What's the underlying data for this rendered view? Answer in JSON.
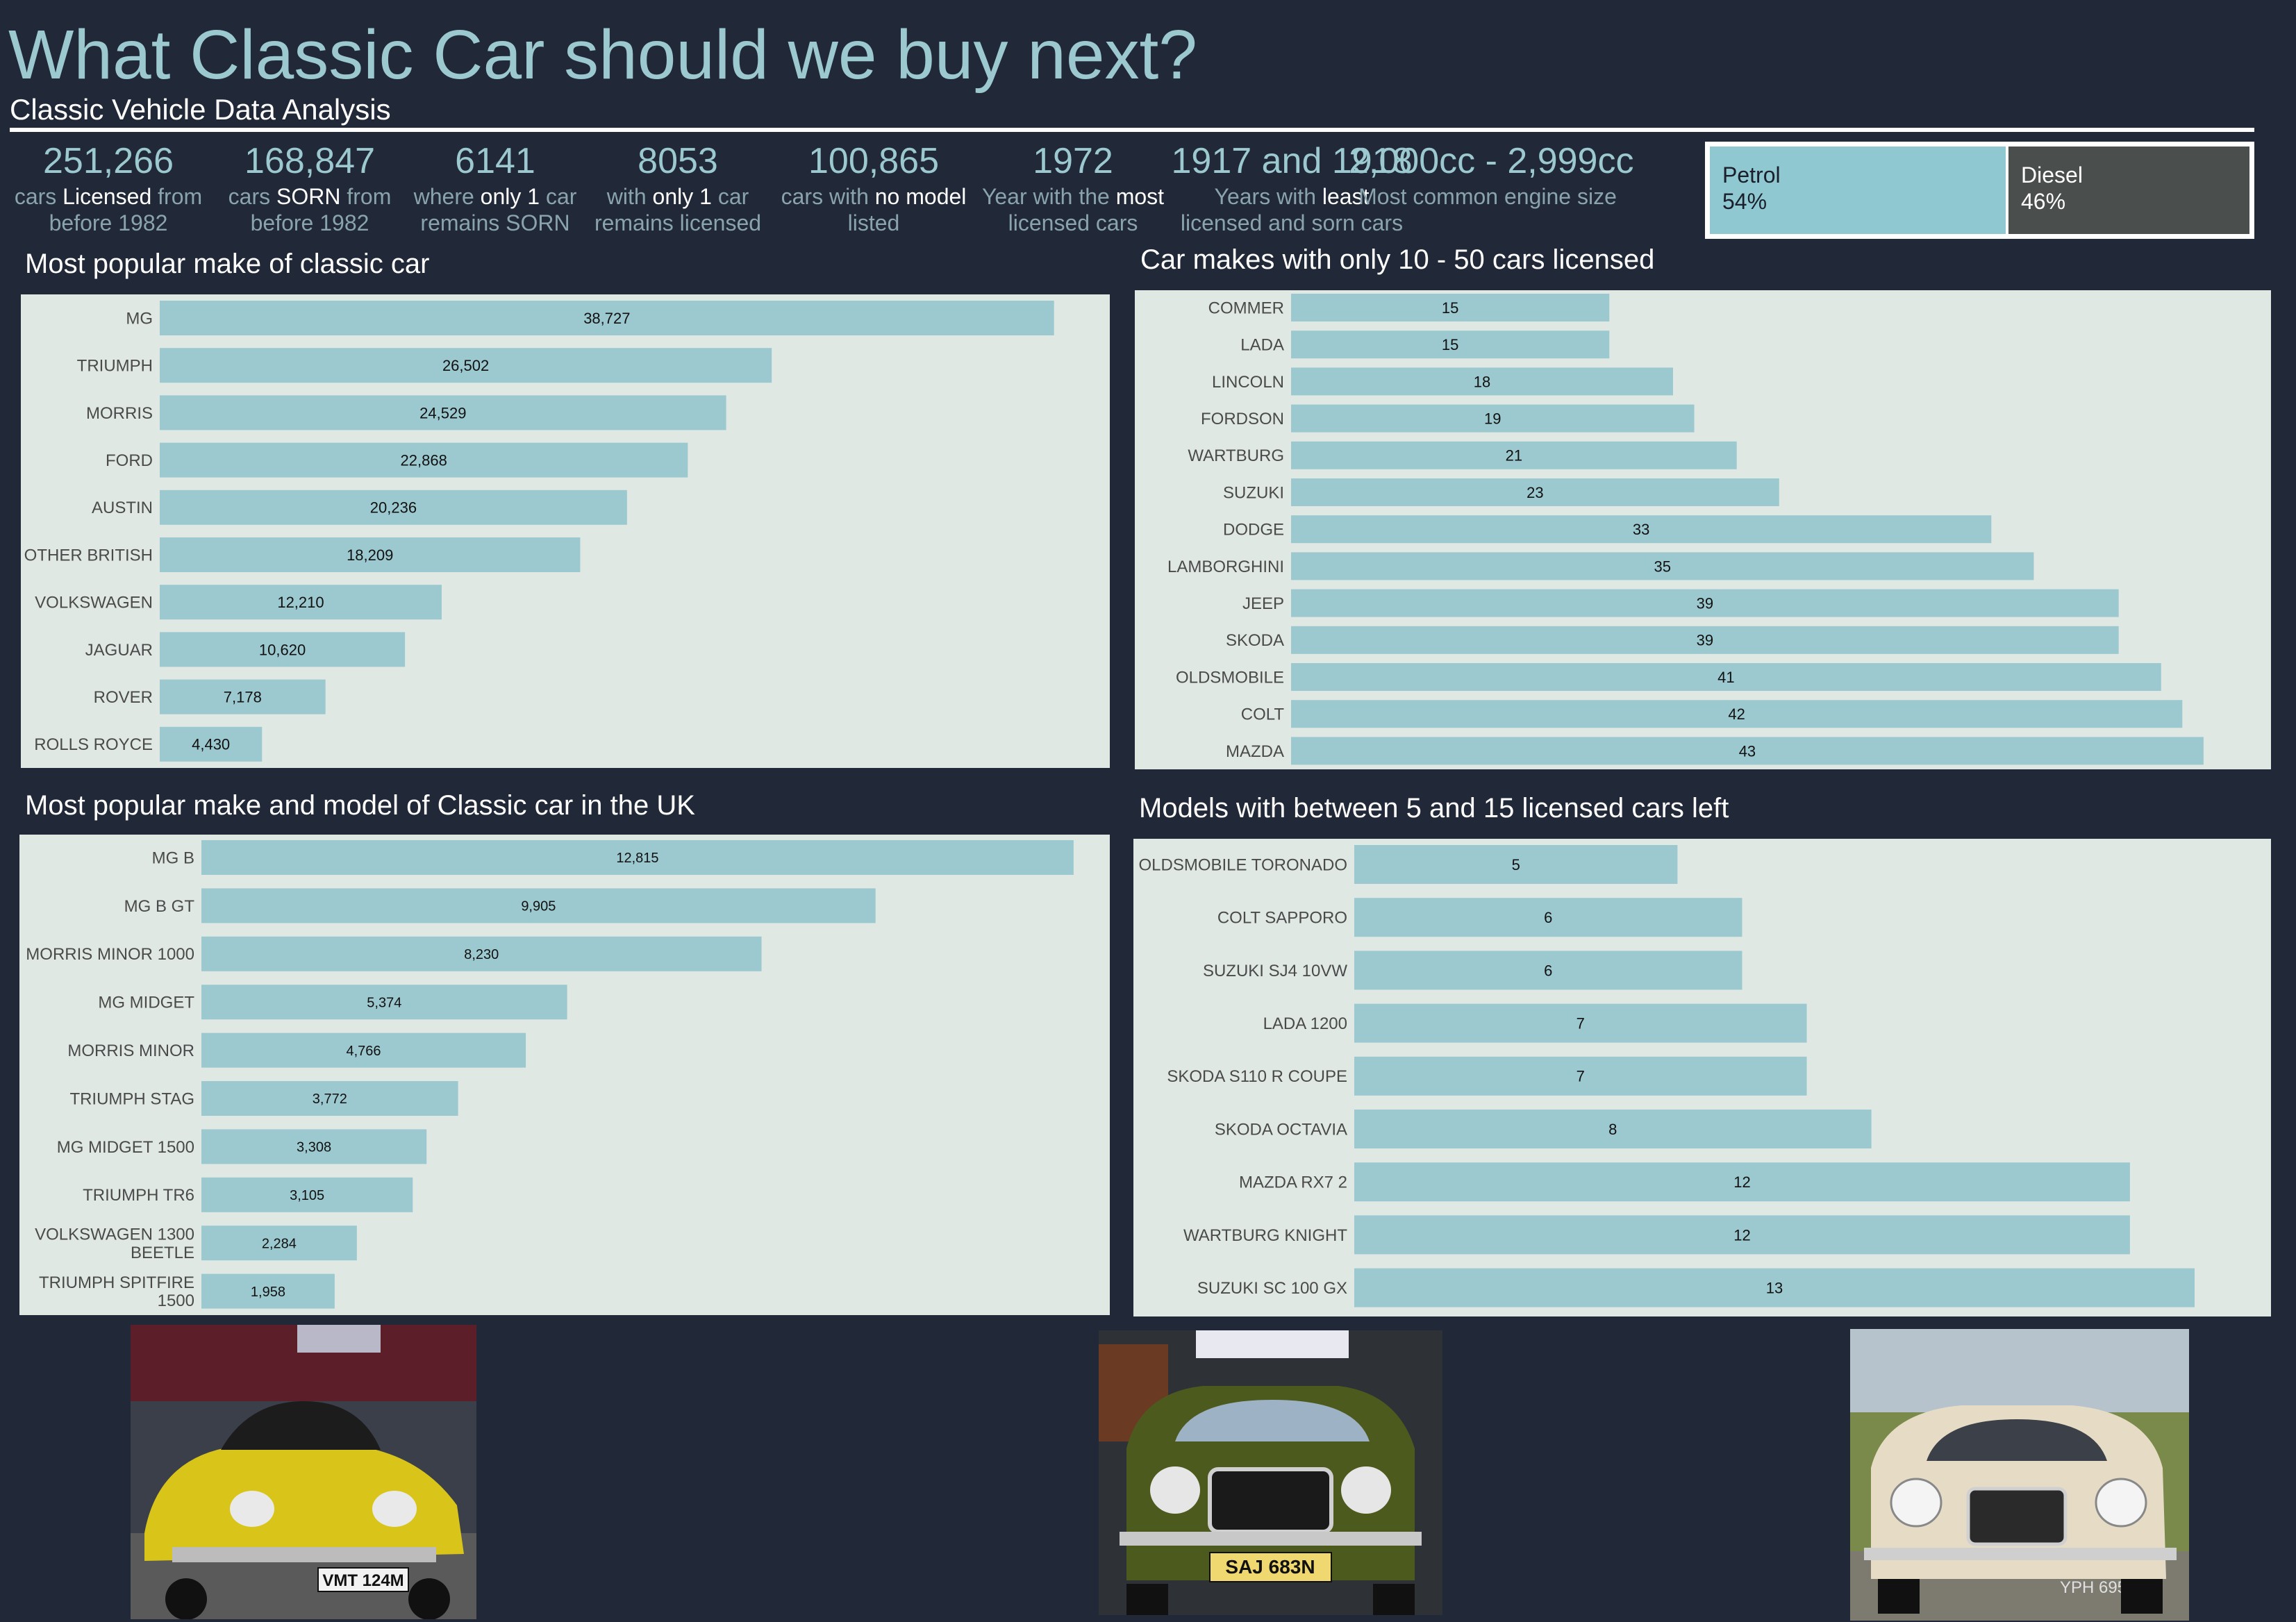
{
  "header": {
    "title": "What Classic Car should we buy next?",
    "subtitle": "Classic Vehicle Data Analysis"
  },
  "kpis": [
    {
      "value": "251,266",
      "pre": "cars ",
      "hl": "Licensed",
      "post": " from",
      "line2": "before 1982"
    },
    {
      "value": "168,847",
      "pre": "cars ",
      "hl": "SORN",
      "post": " from",
      "line2": "before 1982"
    },
    {
      "value": "6141",
      "pre": "where ",
      "hl": "only 1",
      "post": " car",
      "line2": "remains SORN"
    },
    {
      "value": "8053",
      "pre": "with ",
      "hl": "only 1",
      "post": " car",
      "line2": "remains licensed"
    },
    {
      "value": "100,865",
      "pre": "cars with ",
      "hl": "no model",
      "post": "",
      "line2": "listed"
    },
    {
      "value": "1972",
      "pre": "Year with the ",
      "hl": "most",
      "post": "",
      "line2": "licensed cars"
    },
    {
      "value": "1917 and 1918",
      "pre": "Years with ",
      "hl": "least",
      "post": "",
      "line2": "licensed and sorn cars"
    },
    {
      "value": "2,000cc - 2,999cc",
      "pre": "Most common engine size",
      "hl": "",
      "post": "",
      "line2": ""
    }
  ],
  "fuel": {
    "segments": [
      {
        "name": "Petrol",
        "percent_label": "54%",
        "share": 0.54,
        "color": "#8fc8d0"
      },
      {
        "name": "Diesel",
        "percent_label": "46%",
        "share": 0.46,
        "color": "#4a4e4d"
      }
    ]
  },
  "colors": {
    "background": "#212838",
    "bar": "#9cc9cf",
    "panel": "#e0e8e4",
    "title": "#9cc9cf"
  },
  "chart_data": [
    {
      "type": "bar",
      "orientation": "horizontal",
      "title": "Most popular make of classic car",
      "categories": [
        "MG",
        "TRIUMPH",
        "MORRIS",
        "FORD",
        "AUSTIN",
        "OTHER BRITISH",
        "VOLKSWAGEN",
        "JAGUAR",
        "ROVER",
        "ROLLS ROYCE"
      ],
      "values": [
        38727,
        26502,
        24529,
        22868,
        20236,
        18209,
        12210,
        10620,
        7178,
        4430
      ],
      "labels": [
        "38,727",
        "26,502",
        "24,529",
        "22,868",
        "20,236",
        "18,209",
        "12,210",
        "10,620",
        "7,178",
        "4,430"
      ],
      "xlim": [
        0,
        40000
      ]
    },
    {
      "type": "bar",
      "orientation": "horizontal",
      "title": "Car makes with only 10 - 50 cars licensed",
      "categories": [
        "COMMER",
        "LADA",
        "LINCOLN",
        "FORDSON",
        "WARTBURG",
        "SUZUKI",
        "DODGE",
        "LAMBORGHINI",
        "JEEP",
        "SKODA",
        "OLDSMOBILE",
        "COLT",
        "MAZDA"
      ],
      "values": [
        15,
        15,
        18,
        19,
        21,
        23,
        33,
        35,
        39,
        39,
        41,
        42,
        43
      ],
      "labels": [
        "15",
        "15",
        "18",
        "19",
        "21",
        "23",
        "33",
        "35",
        "39",
        "39",
        "41",
        "42",
        "43"
      ],
      "xlim": [
        0,
        45
      ]
    },
    {
      "type": "bar",
      "orientation": "horizontal",
      "title": "Most popular make and model of Classic car in the UK",
      "categories": [
        [
          "MG B"
        ],
        [
          "MG B GT"
        ],
        [
          "MORRIS MINOR 1000"
        ],
        [
          "MG MIDGET"
        ],
        [
          "MORRIS MINOR"
        ],
        [
          "TRIUMPH STAG"
        ],
        [
          "MG MIDGET 1500"
        ],
        [
          "TRIUMPH TR6"
        ],
        [
          "VOLKSWAGEN 1300",
          "BEETLE"
        ],
        [
          "TRIUMPH SPITFIRE",
          "1500"
        ]
      ],
      "values": [
        12815,
        9905,
        8230,
        5374,
        4766,
        3772,
        3308,
        3105,
        2284,
        1958
      ],
      "labels": [
        "12,815",
        "9,905",
        "8,230",
        "5,374",
        "4,766",
        "3,772",
        "3,308",
        "3,105",
        "2,284",
        "1,958"
      ],
      "xlim": [
        0,
        13000
      ]
    },
    {
      "type": "bar",
      "orientation": "horizontal",
      "title": "Models with between 5 and 15 licensed cars left",
      "categories": [
        "OLDSMOBILE TORONADO",
        "COLT SAPPORO",
        "SUZUKI SJ4 10VW",
        "LADA 1200",
        "SKODA S110 R COUPE",
        "SKODA OCTAVIA",
        "MAZDA RX7 2",
        "WARTBURG KNIGHT",
        "SUZUKI SC 100 GX"
      ],
      "values": [
        5,
        6,
        6,
        7,
        7,
        8,
        12,
        12,
        13
      ],
      "labels": [
        "5",
        "6",
        "6",
        "7",
        "7",
        "8",
        "12",
        "12",
        "13"
      ],
      "xlim": [
        0,
        13
      ]
    }
  ],
  "photos": [
    {
      "plate": "VMT 124M",
      "body_color": "#d9c51a"
    },
    {
      "plate": "SAJ 683N",
      "body_color": "#4d5a1e"
    },
    {
      "plate": "YPH 695",
      "body_color": "#e6dcc6"
    }
  ]
}
